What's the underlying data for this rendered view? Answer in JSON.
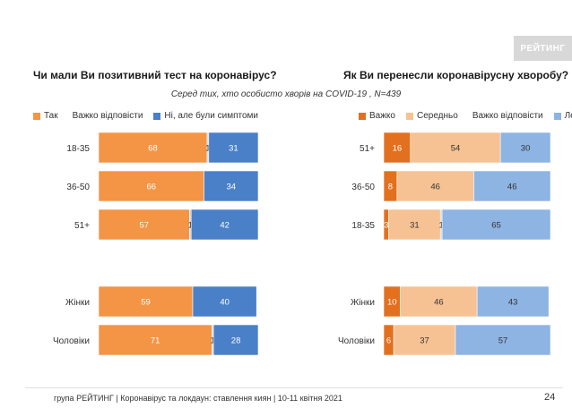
{
  "brand": "РЕЙТИНГ",
  "subtitle": "Серед тих, хто особисто хворів на COVID-19 , N=439",
  "footer": "група РЕЙТИНГ | Коронавірус та локдаун: ставлення киян | 10-11 квітня 2021",
  "page_number": "24",
  "chart_data": [
    {
      "type": "bar",
      "orientation": "horizontal-stacked",
      "title": "Чи мали Ви позитивний тест на коронавірус?",
      "categories": [
        "18-35",
        "36-50",
        "51+",
        "Жінки",
        "Чоловіки"
      ],
      "series": [
        {
          "name": "Так",
          "color": "#f39545",
          "values": [
            68,
            66,
            57,
            59,
            71
          ]
        },
        {
          "name": "Важко відповісти",
          "color": "#d0d0d0",
          "values": [
            1,
            0,
            1,
            0,
            1
          ]
        },
        {
          "name": "Ні, але були симптоми",
          "color": "#4a80c8",
          "values": [
            31,
            34,
            42,
            40,
            28
          ]
        }
      ],
      "xlim": [
        0,
        100
      ],
      "legend": "top"
    },
    {
      "type": "bar",
      "orientation": "horizontal-stacked",
      "title": "Як Ви перенесли коронавірусну хворобу?",
      "categories": [
        "51+",
        "36-50",
        "18-35",
        "Жінки",
        "Чоловіки"
      ],
      "series": [
        {
          "name": "Важко",
          "color": "#e3701e",
          "values": [
            16,
            8,
            3,
            10,
            6
          ]
        },
        {
          "name": "Середньо",
          "color": "#f7c293",
          "values": [
            54,
            46,
            31,
            46,
            37
          ]
        },
        {
          "name": "Важко відповісти",
          "color": "#d0d0d0",
          "values": [
            0,
            0,
            1,
            0,
            0
          ]
        },
        {
          "name": "Легко",
          "color": "#8db4e2",
          "values": [
            30,
            46,
            65,
            43,
            57
          ]
        }
      ],
      "xlim": [
        0,
        100
      ],
      "legend": "top"
    }
  ]
}
